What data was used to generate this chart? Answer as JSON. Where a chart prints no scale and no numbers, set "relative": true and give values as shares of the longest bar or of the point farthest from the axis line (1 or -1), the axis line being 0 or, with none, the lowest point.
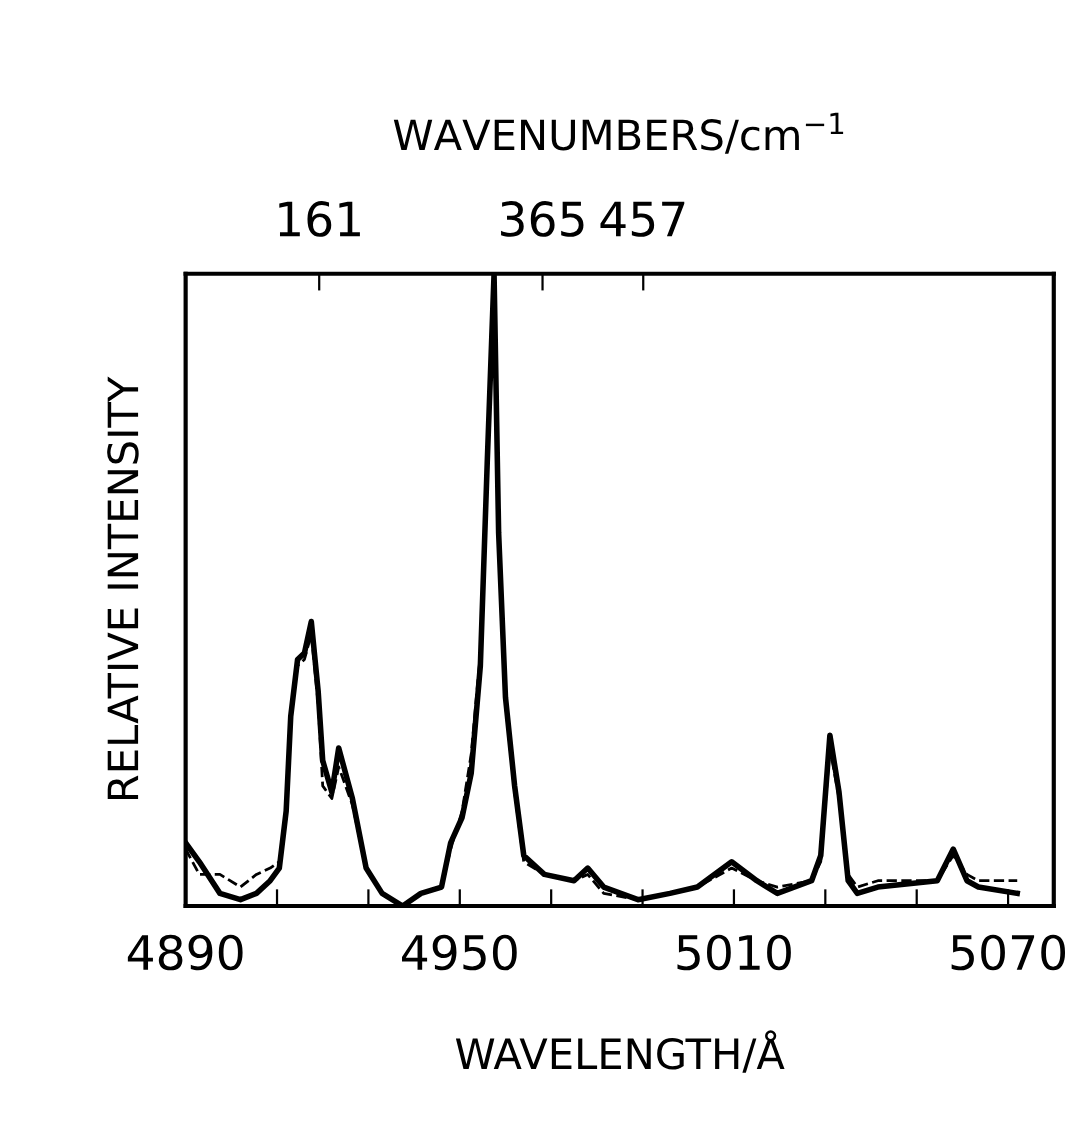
{
  "chart_data": {
    "type": "line",
    "relative": true,
    "xlabel": "WAVELENGTH/Å",
    "ylabel": "RELATIVE INTENSITY",
    "x2label": "WAVENUMBERS/cm$^{−1}$",
    "xlim": [
      4890,
      5080
    ],
    "xticks": [
      4890,
      {
        "value": 4910,
        "label": null
      },
      {
        "value": 4930,
        "label": null
      },
      4950,
      {
        "value": 4970,
        "label": null
      },
      {
        "value": 4990,
        "label": null
      },
      5010,
      {
        "value": 5030,
        "label": null
      },
      {
        "value": 5050,
        "label": null
      },
      5070
    ],
    "x2lim": [
      39,
      832
    ],
    "x2ticks": [
      161,
      365,
      457
    ],
    "series": [
      {
        "color": "#000000",
        "line_style": "solid",
        "x": [
          4890,
          4893,
          4897.5,
          4902,
          4905.5,
          4908.5,
          4910.5,
          4912,
          4913,
          4914.5,
          4916,
          4917.5,
          4919,
          4920,
          4922,
          4923.5,
          4926.5,
          4929.5,
          4933,
          4937.5,
          4941.5,
          4946,
          4948,
          4950.5,
          4952.5,
          4954.5,
          4956,
          4957,
          4957.5,
          4958.5,
          4960,
          4962,
          4964,
          4968.5,
          4975,
          4978,
          4981.5,
          4989,
          4996,
          5002,
          5009.5,
          5015,
          5019.5,
          5027,
          5029,
          5031,
          5033,
          5035,
          5037,
          5041.5,
          5054.5,
          5058,
          5061,
          5063.5,
          5072
        ],
        "values": [
          0.1,
          0.07,
          0.02,
          0.01,
          0.02,
          0.04,
          0.06,
          0.15,
          0.3,
          0.39,
          0.4,
          0.45,
          0.34,
          0.23,
          0.18,
          0.25,
          0.17,
          0.06,
          0.02,
          0.0,
          0.02,
          0.03,
          0.1,
          0.14,
          0.21,
          0.38,
          0.7,
          0.9,
          1.0,
          0.59,
          0.33,
          0.19,
          0.08,
          0.05,
          0.04,
          0.06,
          0.03,
          0.01,
          0.02,
          0.03,
          0.07,
          0.04,
          0.02,
          0.04,
          0.08,
          0.27,
          0.18,
          0.04,
          0.02,
          0.03,
          0.04,
          0.09,
          0.04,
          0.03,
          0.02
        ]
      },
      {
        "color": "#000000",
        "line_style": "dashed",
        "x": [
          4890,
          4893,
          4897.5,
          4902,
          4905.5,
          4908.5,
          4910.5,
          4912,
          4913,
          4914.5,
          4916,
          4917.5,
          4919,
          4920,
          4922,
          4923.5,
          4926.5,
          4929.5,
          4933,
          4937.5,
          4941.5,
          4946,
          4948,
          4950.5,
          4952.5,
          4954.5,
          4956,
          4957,
          4957.5,
          4958.5,
          4960,
          4962,
          4964,
          4968.5,
          4975,
          4978,
          4981.5,
          4989,
          4996,
          5002,
          5009.5,
          5015,
          5019.5,
          5027,
          5029,
          5031,
          5033,
          5035,
          5037,
          5041.5,
          5054.5,
          5058,
          5061,
          5063.5,
          5072
        ],
        "values": [
          0.09,
          0.05,
          0.05,
          0.03,
          0.05,
          0.06,
          0.07,
          0.14,
          0.3,
          0.38,
          0.39,
          0.43,
          0.32,
          0.19,
          0.17,
          0.22,
          0.16,
          0.06,
          0.02,
          0.0,
          0.02,
          0.03,
          0.09,
          0.15,
          0.24,
          0.4,
          0.68,
          0.88,
          0.97,
          0.58,
          0.32,
          0.18,
          0.07,
          0.05,
          0.04,
          0.05,
          0.02,
          0.01,
          0.02,
          0.03,
          0.06,
          0.04,
          0.03,
          0.04,
          0.07,
          0.25,
          0.17,
          0.05,
          0.03,
          0.04,
          0.04,
          0.08,
          0.05,
          0.04,
          0.04
        ]
      }
    ]
  }
}
